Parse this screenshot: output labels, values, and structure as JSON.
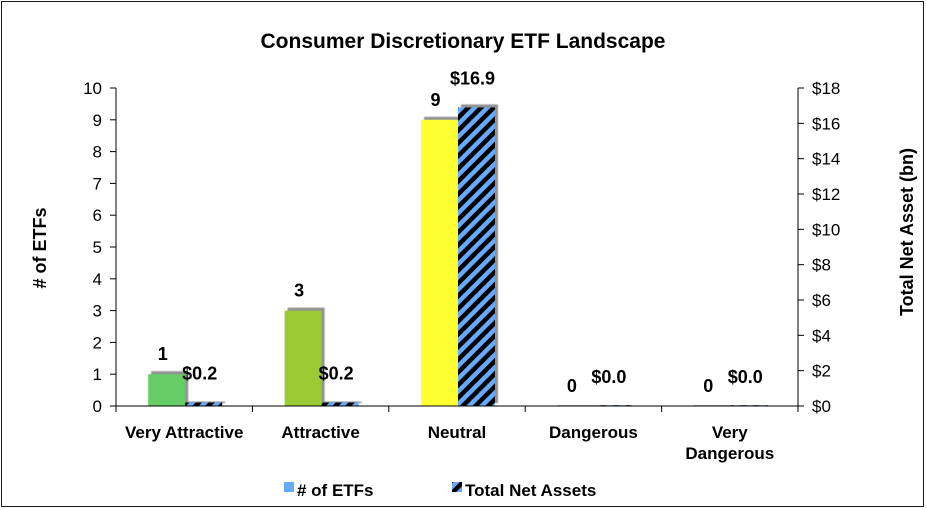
{
  "chart_data": {
    "type": "bar",
    "title": "Consumer Discretionary ETF Landscape",
    "categories": [
      [
        "Very Attractive"
      ],
      [
        "Attractive"
      ],
      [
        "Neutral"
      ],
      [
        "Dangerous"
      ],
      [
        "Very",
        "Dangerous"
      ]
    ],
    "category_colors": [
      "#66cc66",
      "#99cc33",
      "#ffff33",
      "#999999",
      "#999999"
    ],
    "series": [
      {
        "name": "# of ETFs",
        "axis": "left",
        "values": [
          1,
          3,
          9,
          0,
          0
        ],
        "labels": [
          "1",
          "3",
          "9",
          "0",
          "0"
        ]
      },
      {
        "name": "Total Net Assets",
        "axis": "right",
        "values": [
          0.2,
          0.2,
          16.9,
          0.0,
          0.0
        ],
        "labels": [
          "$0.2",
          "$0.2",
          "$16.9",
          "$0.0",
          "$0.0"
        ],
        "pattern": "diagonal stripes",
        "colors": [
          "#000000",
          "#66aaff"
        ]
      }
    ],
    "ylabel": "# of ETFs",
    "ylim": [
      0,
      10
    ],
    "yticks": [
      "0",
      "1",
      "2",
      "3",
      "4",
      "5",
      "6",
      "7",
      "8",
      "9",
      "10"
    ],
    "y2label": "Total Net Asset (bn)",
    "y2lim": [
      0,
      18
    ],
    "y2ticks": [
      "$0",
      "$2",
      "$4",
      "$6",
      "$8",
      "$10",
      "$12",
      "$14",
      "$16",
      "$18"
    ],
    "legend": {
      "position": "bottom",
      "entries": [
        {
          "label": "# of ETFs",
          "swatch_color": "#66aaff"
        },
        {
          "label": "Total Net Assets",
          "swatch": "diagonal stripes"
        }
      ]
    },
    "grid": false
  }
}
